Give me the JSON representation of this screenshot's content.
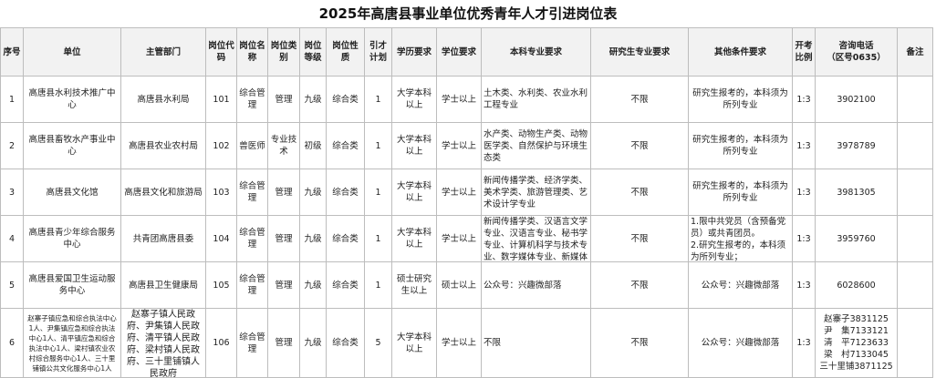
{
  "title": "2025年高唐县事业单位优秀青年人才引进岗位表",
  "headers": [
    "序号",
    "单位",
    "主管部门",
    "岗位代码",
    "岗位名称",
    "岗位类别",
    "岗位等级",
    "岗位性质",
    "引才计划",
    "学历要求",
    "学位要求",
    "本科专业要求",
    "研究生专业要求",
    "其他条件要求",
    "开考比例",
    "咨询电话\n（区号0635）",
    "备注"
  ],
  "rows": [
    [
      "1",
      "高唐县水利技术推广中心",
      "高唐县水利局",
      "101",
      "综合管理",
      "管理",
      "九级",
      "综合类",
      "1",
      "大学本科以上",
      "学士以上",
      "土木类、水利类、农业水利工程专业",
      "不限",
      "研究生报考的，本科须为所列专业",
      "1:3",
      "3902100",
      ""
    ],
    [
      "2",
      "高唐县畜牧水产事业中心",
      "高唐县农业农村局",
      "102",
      "兽医师",
      "专业技术",
      "初级",
      "综合类",
      "1",
      "大学本科以上",
      "学士以上",
      "水产类、动物生产类、动物医学类、自然保护与环境生态类",
      "不限",
      "研究生报考的，本科须为所列专业",
      "1:3",
      "3978789",
      ""
    ],
    [
      "3",
      "高唐县文化馆",
      "高唐县文化和旅游局",
      "103",
      "综合管理",
      "管理",
      "九级",
      "综合类",
      "1",
      "大学本科以上",
      "学士以上",
      "新闻传播学类、经济学类、美术学类、旅游管理类、艺术设计学专业",
      "不限",
      "研究生报考的，本科须为所列专业",
      "1:3",
      "3981305",
      ""
    ],
    [
      "4",
      "高唐县青少年综合服务中心",
      "共青团高唐县委",
      "104",
      "综合管理",
      "管理",
      "九级",
      "综合类",
      "1",
      "大学本科以上",
      "学士以上",
      "新闻传播学类、汉语言文学专业、汉语言专业、秘书学专业、计算机科学与技术专业、数字媒体专业、新媒体",
      "不限",
      "1.限中共党员（含预备党员）或共青团员。\n2.研究生报考的，本科须为所列专业；",
      "1:3",
      "3959760",
      ""
    ],
    [
      "5",
      "高唐县爱国卫生运动服务中心",
      "高唐县卫生健康局",
      "105",
      "综合管理",
      "管理",
      "九级",
      "综合类",
      "1",
      "硕士研究生以上",
      "硕士以上",
      "公众号：兴趣微部落",
      "不限",
      "公众号：兴趣微部落",
      "1:3",
      "6028600",
      ""
    ],
    [
      "6",
      "赵寨子镇应急和综合执法中心1人、尹集镇应急和综合执法中心1人、清平镇应急和综合执法中心1人、梁村镇农业农村综合服务中心1人、三十里铺镇公共文化服务中心1人",
      "赵寨子镇人民政府、尹集镇人民政府、清平镇人民政府、梁村镇人民政府、三十里铺镇人民政府",
      "106",
      "综合管理",
      "管理",
      "九级",
      "综合类",
      "5",
      "大学本科以上",
      "学士以上",
      "不限",
      "不限",
      "公众号：兴趣微部落",
      "1:3",
      "赵寨子3831125\n尹　集7133121\n清　平7123633\n梁　村7133045\n三十里铺3871125",
      ""
    ]
  ]
}
